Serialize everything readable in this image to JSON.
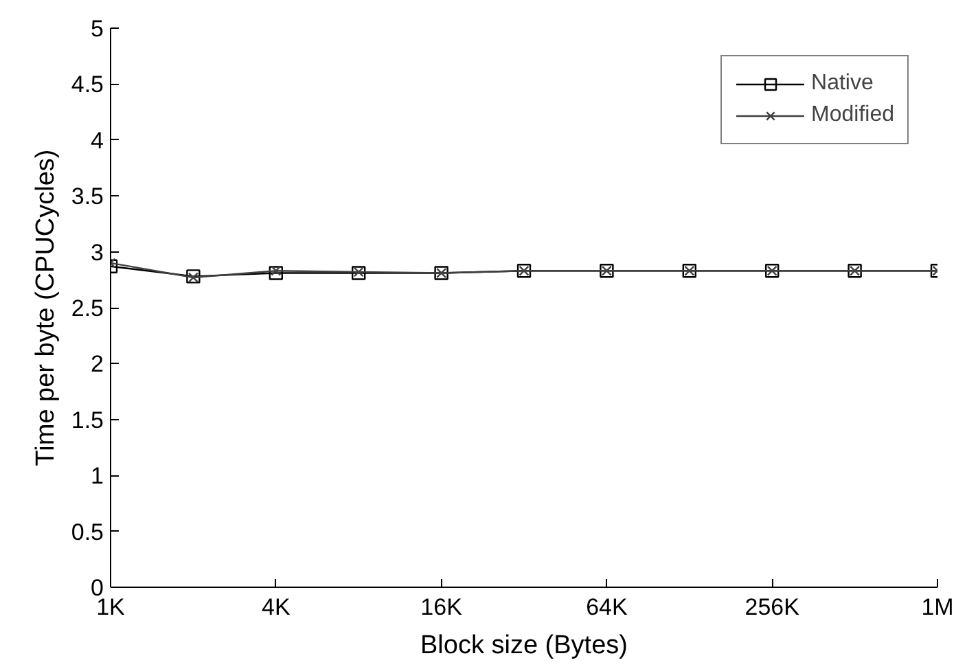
{
  "chart_data": {
    "type": "line",
    "xlabel": "Block size (Bytes)",
    "ylabel": "Time per byte (CPUCycles)",
    "x": [
      1000,
      2000,
      4000,
      8000,
      16000,
      32000,
      64000,
      128000,
      256000,
      512000,
      1024000
    ],
    "log": "x",
    "xlim": [
      1000,
      1024000
    ],
    "xticks": [
      {
        "value": 1000,
        "label": "1K"
      },
      {
        "value": 4000,
        "label": "4K"
      },
      {
        "value": 16000,
        "label": "16K"
      },
      {
        "value": 64000,
        "label": "64K"
      },
      {
        "value": 256000,
        "label": "256K"
      },
      {
        "value": 1024000,
        "label": "1M"
      }
    ],
    "ylim": [
      0,
      5
    ],
    "yticks": [
      0,
      0.5,
      1,
      1.5,
      2,
      2.5,
      3,
      3.5,
      4,
      4.5,
      5
    ],
    "series": [
      {
        "name": "Native",
        "color": "#000000",
        "marker": "square",
        "values": [
          2.87,
          2.78,
          2.81,
          2.81,
          2.81,
          2.83,
          2.83,
          2.83,
          2.83,
          2.83,
          2.83
        ]
      },
      {
        "name": "Modified",
        "color": "#404040",
        "marker": "cross",
        "values": [
          2.9,
          2.77,
          2.83,
          2.82,
          2.81,
          2.83,
          2.83,
          2.83,
          2.83,
          2.83,
          2.83
        ]
      }
    ],
    "legend": "top right",
    "grid": false
  }
}
